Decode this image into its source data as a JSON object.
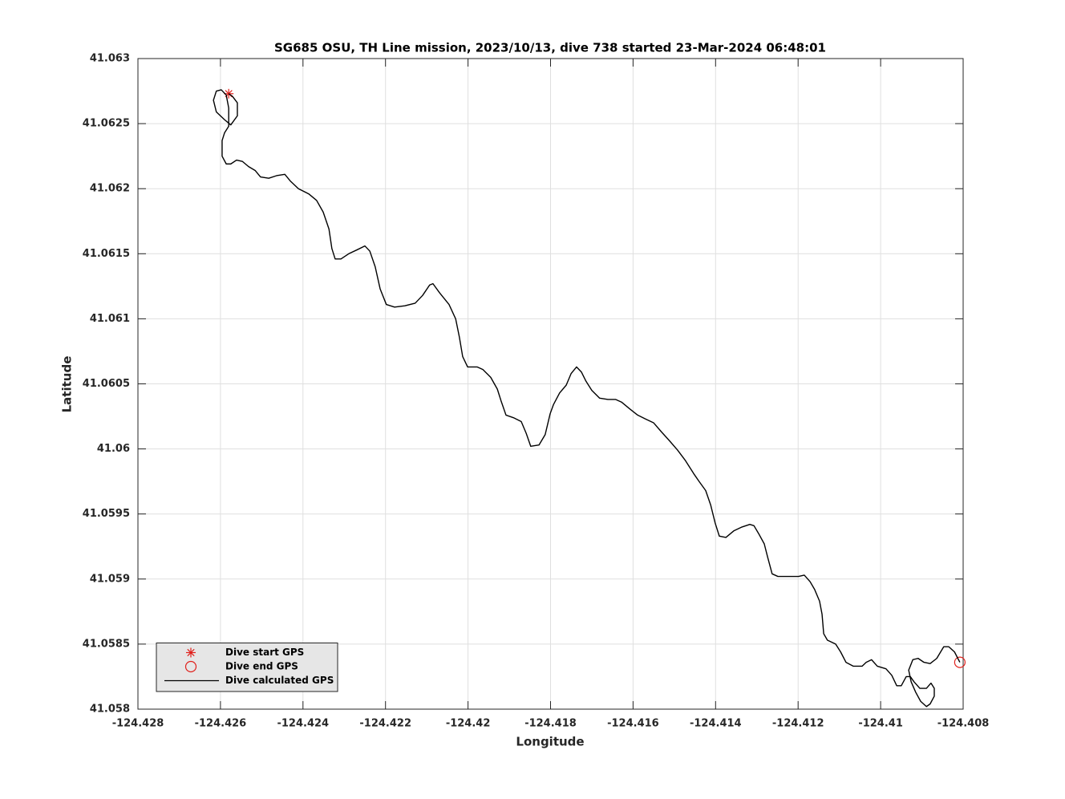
{
  "chart_data": {
    "type": "line",
    "title": "SG685 OSU, TH Line mission, 2023/10/13, dive 738 started 23-Mar-2024 06:48:01",
    "x_label": "Longitude",
    "y_label": "Latitude",
    "xlim": [
      -124.428,
      -124.408
    ],
    "ylim": [
      41.058,
      41.063
    ],
    "xticks": [
      -124.428,
      -124.426,
      -124.424,
      -124.422,
      -124.42,
      -124.418,
      -124.416,
      -124.414,
      -124.412,
      -124.41,
      -124.408
    ],
    "yticks": [
      41.058,
      41.0585,
      41.059,
      41.0595,
      41.06,
      41.0605,
      41.061,
      41.0615,
      41.062,
      41.0625,
      41.063
    ],
    "grid": true,
    "legend_location": "southwest",
    "series": [
      {
        "name": "Dive start GPS",
        "color": "#e0201b",
        "marker": "asterisk",
        "x": [
          -124.4258
        ],
        "values": [
          41.06273
        ]
      },
      {
        "name": "Dive end GPS",
        "color": "#e0201b",
        "marker": "circle",
        "x": [
          -124.40808
        ],
        "values": [
          41.05836
        ]
      },
      {
        "name": "Dive calculated GPS",
        "color": "#000000",
        "x": [
          -124.4258,
          -124.42571,
          -124.42559,
          -124.42559,
          -124.42575,
          -124.4259,
          -124.4261,
          -124.42617,
          -124.4261,
          -124.42598,
          -124.42586,
          -124.4258,
          -124.4258,
          -124.4259,
          -124.42596,
          -124.42596,
          -124.42586,
          -124.42575,
          -124.42561,
          -124.42547,
          -124.42532,
          -124.42516,
          -124.42503,
          -124.42483,
          -124.42464,
          -124.42444,
          -124.42431,
          -124.42411,
          -124.42386,
          -124.42367,
          -124.42351,
          -124.42337,
          -124.4233,
          -124.42322,
          -124.42308,
          -124.42289,
          -124.42269,
          -124.4225,
          -124.42238,
          -124.42225,
          -124.42213,
          -124.42198,
          -124.42178,
          -124.42153,
          -124.42128,
          -124.4211,
          -124.42093,
          -124.42085,
          -124.42069,
          -124.42046,
          -124.4203,
          -124.42021,
          -124.42013,
          -124.42001,
          -124.41978,
          -124.41964,
          -124.41945,
          -124.41929,
          -124.4192,
          -124.41908,
          -124.4189,
          -124.41871,
          -124.41859,
          -124.41848,
          -124.41828,
          -124.41813,
          -124.41801,
          -124.41793,
          -124.41778,
          -124.41762,
          -124.4175,
          -124.41737,
          -124.41725,
          -124.41714,
          -124.417,
          -124.41681,
          -124.41661,
          -124.41642,
          -124.41628,
          -124.41609,
          -124.41589,
          -124.4157,
          -124.4155,
          -124.41531,
          -124.41511,
          -124.41492,
          -124.41473,
          -124.41453,
          -124.4144,
          -124.41424,
          -124.41412,
          -124.41401,
          -124.41391,
          -124.41375,
          -124.41356,
          -124.41336,
          -124.41317,
          -124.41307,
          -124.41294,
          -124.41282,
          -124.41274,
          -124.41263,
          -124.41249,
          -124.4122,
          -124.41199,
          -124.41185,
          -124.41171,
          -124.4116,
          -124.41148,
          -124.41142,
          -124.41138,
          -124.41129,
          -124.41109,
          -124.41097,
          -124.41084,
          -124.41066,
          -124.41045,
          -124.41035,
          -124.41022,
          -124.41008,
          -124.40987,
          -124.40973,
          -124.40961,
          -124.4095,
          -124.40938,
          -124.40928,
          -124.40919,
          -124.40905,
          -124.40889,
          -124.40878,
          -124.4087,
          -124.4087,
          -124.4088,
          -124.40889,
          -124.40903,
          -124.40915,
          -124.40926,
          -124.40932,
          -124.40922,
          -124.40909,
          -124.40895,
          -124.4088,
          -124.40864,
          -124.40847,
          -124.40835,
          -124.40821,
          -124.40808
        ],
        "values": [
          41.06273,
          41.06271,
          41.06266,
          41.06256,
          41.06249,
          41.06253,
          41.06259,
          41.06268,
          41.06275,
          41.06276,
          41.06272,
          41.06262,
          41.06248,
          41.06243,
          41.06237,
          41.06225,
          41.06219,
          41.06219,
          41.06222,
          41.06221,
          41.06217,
          41.06214,
          41.06209,
          41.06208,
          41.0621,
          41.06211,
          41.06206,
          41.062,
          41.06196,
          41.06191,
          41.06182,
          41.06169,
          41.06154,
          41.06146,
          41.06146,
          41.0615,
          41.06153,
          41.06156,
          41.06152,
          41.0614,
          41.06123,
          41.06111,
          41.06109,
          41.0611,
          41.06112,
          41.06118,
          41.06126,
          41.06127,
          41.0612,
          41.06111,
          41.061,
          41.06086,
          41.06071,
          41.06063,
          41.06063,
          41.06061,
          41.06055,
          41.06046,
          41.06037,
          41.06026,
          41.06024,
          41.06021,
          41.06012,
          41.06002,
          41.06003,
          41.06011,
          41.06027,
          41.06034,
          41.06043,
          41.06049,
          41.06058,
          41.06063,
          41.06059,
          41.06052,
          41.06045,
          41.06039,
          41.06038,
          41.06038,
          41.06036,
          41.06031,
          41.06026,
          41.06023,
          41.0602,
          41.06013,
          41.06006,
          41.05999,
          41.05991,
          41.05981,
          41.05975,
          41.05968,
          41.05957,
          41.05943,
          41.05933,
          41.05932,
          41.05937,
          41.0594,
          41.05942,
          41.05941,
          41.05934,
          41.05927,
          41.05917,
          41.05904,
          41.05902,
          41.05902,
          41.05902,
          41.05903,
          41.05898,
          41.05892,
          41.05883,
          41.05873,
          41.05858,
          41.05853,
          41.0585,
          41.05844,
          41.05836,
          41.05833,
          41.05833,
          41.05836,
          41.05838,
          41.05833,
          41.05831,
          41.05826,
          41.05818,
          41.05818,
          41.05825,
          41.05825,
          41.05821,
          41.05816,
          41.05816,
          41.0582,
          41.05816,
          41.0581,
          41.05804,
          41.05802,
          41.05806,
          41.05813,
          41.05821,
          41.0583,
          41.05838,
          41.05839,
          41.05836,
          41.05835,
          41.05839,
          41.05848,
          41.05848,
          41.05844,
          41.05836
        ]
      }
    ]
  }
}
